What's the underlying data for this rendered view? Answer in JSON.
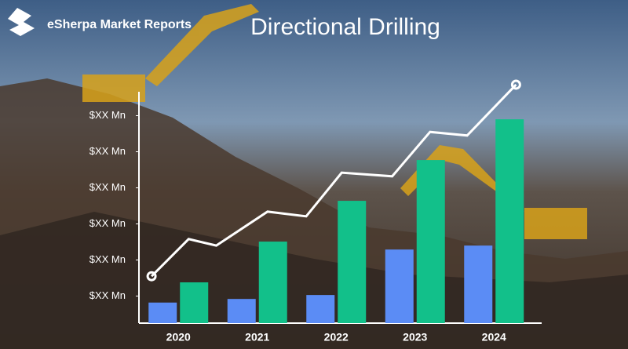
{
  "brand": "eSherpa Market Reports",
  "chart_data": {
    "type": "bar",
    "title": "Directional Drilling",
    "categories": [
      "2020",
      "2021",
      "2022",
      "2023",
      "2024"
    ],
    "series": [
      {
        "color": "#5b8cf5",
        "values": [
          0.57,
          0.67,
          0.78,
          2.04,
          2.15
        ]
      },
      {
        "color": "#12c08a",
        "values": [
          1.13,
          2.26,
          3.39,
          4.52,
          5.65
        ]
      }
    ],
    "line": {
      "color": "#ffffff",
      "x": [
        2019.66,
        2020.13,
        2020.48,
        2021.13,
        2021.62,
        2022.07,
        2022.71,
        2023.19,
        2023.66,
        2024.28
      ],
      "values": [
        1.3,
        2.33,
        2.15,
        3.09,
        2.96,
        4.17,
        4.07,
        5.3,
        5.2,
        6.61
      ]
    },
    "xlim": [
      2019.5,
      2024.5
    ],
    "ylim": [
      0,
      6.4
    ],
    "yticks": [
      {
        "value": 0.75,
        "label": "$XX Mn"
      },
      {
        "value": 1.75,
        "label": "$XX Mn"
      },
      {
        "value": 2.75,
        "label": "$XX Mn"
      },
      {
        "value": 3.75,
        "label": "$XX Mn"
      },
      {
        "value": 4.75,
        "label": "$XX Mn"
      },
      {
        "value": 5.75,
        "label": "$XX Mn"
      }
    ]
  }
}
